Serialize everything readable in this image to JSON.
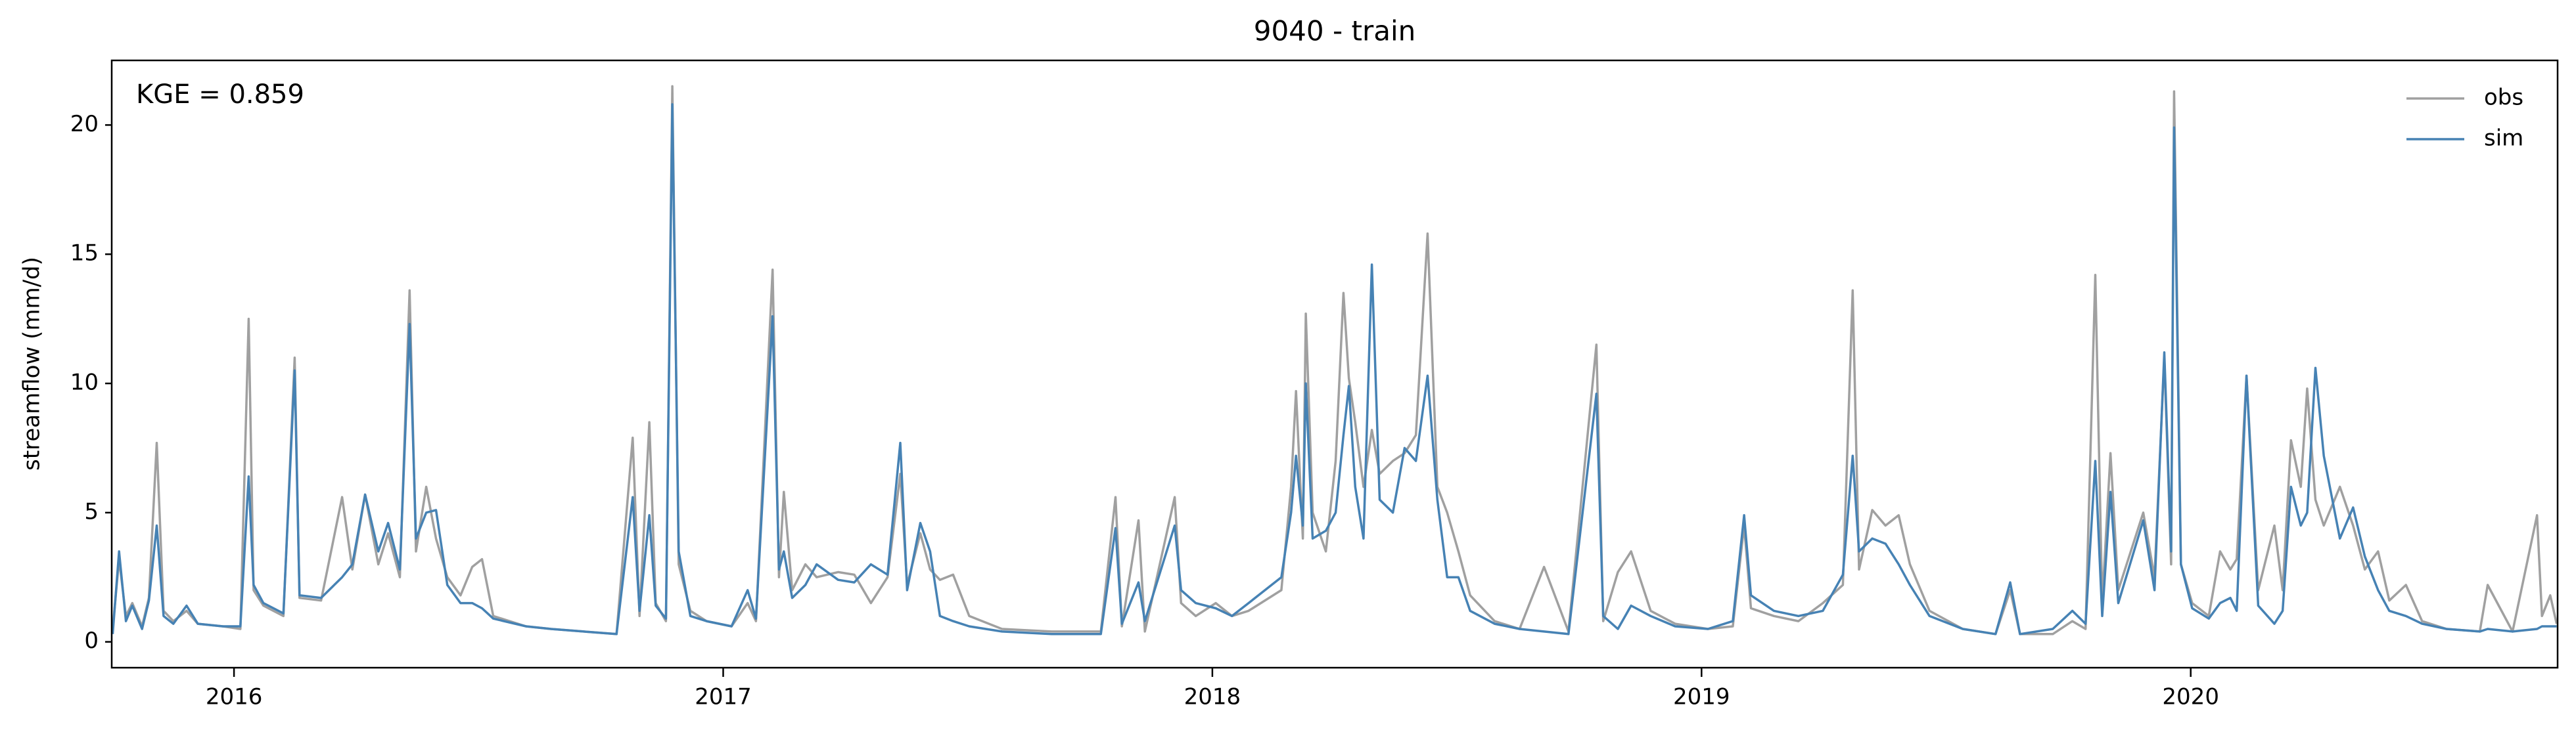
{
  "chart_data": {
    "type": "line",
    "title": "9040 - train",
    "ylabel": "streamflow (mm/d)",
    "annotation": "KGE = 0.859",
    "x": [
      2015.752,
      2015.765,
      2015.779,
      2015.792,
      2015.812,
      2015.826,
      2015.842,
      2015.856,
      2015.876,
      2015.903,
      2015.926,
      2015.977,
      2016.013,
      2016.03,
      2016.04,
      2016.06,
      2016.101,
      2016.124,
      2016.134,
      2016.178,
      2016.221,
      2016.242,
      2016.268,
      2016.295,
      2016.315,
      2016.339,
      2016.359,
      2016.372,
      2016.393,
      2016.413,
      2016.436,
      2016.463,
      2016.487,
      2016.507,
      2016.53,
      2016.597,
      2016.648,
      2016.715,
      2016.782,
      2016.815,
      2016.829,
      2016.849,
      2016.862,
      2016.883,
      2016.896,
      2016.909,
      2016.933,
      2016.966,
      2017.017,
      2017.05,
      2017.067,
      2017.101,
      2017.114,
      2017.124,
      2017.141,
      2017.168,
      2017.191,
      2017.235,
      2017.268,
      2017.302,
      2017.336,
      2017.362,
      2017.376,
      2017.403,
      2017.423,
      2017.443,
      2017.47,
      2017.503,
      2017.57,
      2017.671,
      2017.772,
      2017.802,
      2017.815,
      2017.849,
      2017.862,
      2017.923,
      2017.936,
      2017.966,
      2018.007,
      2018.04,
      2018.074,
      2018.141,
      2018.161,
      2018.171,
      2018.185,
      2018.191,
      2018.205,
      2018.232,
      2018.252,
      2018.268,
      2018.279,
      2018.292,
      2018.309,
      2018.326,
      2018.342,
      2018.369,
      2018.393,
      2018.416,
      2018.44,
      2018.46,
      2018.48,
      2018.503,
      2018.527,
      2018.577,
      2018.628,
      2018.678,
      2018.728,
      2018.785,
      2018.799,
      2018.829,
      2018.856,
      2018.896,
      2018.946,
      2019.013,
      2019.064,
      2019.087,
      2019.101,
      2019.148,
      2019.198,
      2019.248,
      2019.289,
      2019.309,
      2019.322,
      2019.349,
      2019.376,
      2019.403,
      2019.426,
      2019.466,
      2019.534,
      2019.601,
      2019.631,
      2019.651,
      2019.718,
      2019.758,
      2019.785,
      2019.805,
      2019.819,
      2019.836,
      2019.852,
      2019.903,
      2019.926,
      2019.946,
      2019.96,
      2019.966,
      2019.98,
      2020.003,
      2020.037,
      2020.06,
      2020.081,
      2020.094,
      2020.114,
      2020.138,
      2020.171,
      2020.188,
      2020.205,
      2020.225,
      2020.238,
      2020.255,
      2020.272,
      2020.305,
      2020.332,
      2020.356,
      2020.383,
      2020.406,
      2020.44,
      2020.473,
      2020.523,
      2020.591,
      2020.607,
      2020.658,
      2020.708,
      2020.718,
      2020.735,
      2020.748
    ],
    "series": [
      {
        "name": "obs",
        "color": "#a0a0a0",
        "values": [
          0.5,
          3.2,
          1.0,
          1.5,
          0.6,
          1.7,
          7.7,
          1.2,
          0.8,
          1.2,
          0.7,
          0.6,
          0.5,
          12.5,
          2.0,
          1.4,
          1.0,
          11.0,
          1.7,
          1.6,
          5.6,
          2.8,
          5.7,
          3.0,
          4.2,
          2.5,
          13.6,
          3.5,
          6.0,
          4.0,
          2.5,
          1.8,
          2.9,
          3.2,
          1.0,
          0.6,
          0.5,
          0.4,
          0.3,
          7.9,
          1.0,
          8.5,
          1.5,
          0.8,
          21.5,
          3.0,
          1.2,
          0.8,
          0.6,
          1.5,
          0.8,
          14.4,
          2.5,
          5.8,
          2.0,
          3.0,
          2.5,
          2.7,
          2.6,
          1.5,
          2.5,
          6.5,
          2.2,
          4.2,
          2.8,
          2.4,
          2.6,
          1.0,
          0.5,
          0.4,
          0.4,
          5.6,
          0.6,
          4.7,
          0.4,
          5.6,
          1.5,
          1.0,
          1.5,
          1.0,
          1.2,
          2.0,
          6.0,
          9.7,
          4.0,
          12.7,
          5.0,
          3.5,
          7.0,
          13.5,
          10.2,
          8.5,
          6.0,
          8.2,
          6.5,
          7.0,
          7.3,
          8.0,
          15.8,
          6.0,
          5.0,
          3.5,
          1.8,
          0.8,
          0.5,
          2.9,
          0.4,
          11.5,
          0.8,
          2.7,
          3.5,
          1.2,
          0.7,
          0.5,
          0.6,
          4.5,
          1.3,
          1.0,
          0.8,
          1.5,
          2.2,
          13.6,
          2.8,
          5.1,
          4.5,
          4.9,
          3.0,
          1.2,
          0.5,
          0.3,
          2.0,
          0.3,
          0.3,
          0.8,
          0.5,
          14.2,
          1.5,
          7.3,
          2.0,
          5.0,
          2.5,
          11.0,
          3.0,
          21.3,
          3.0,
          1.5,
          1.0,
          3.5,
          2.8,
          3.2,
          10.3,
          2.0,
          4.5,
          2.0,
          7.8,
          6.0,
          9.8,
          5.5,
          4.5,
          6.0,
          4.5,
          2.8,
          3.5,
          1.6,
          2.2,
          0.8,
          0.5,
          0.4,
          2.2,
          0.4,
          4.9,
          1.0,
          1.8,
          0.7
        ]
      },
      {
        "name": "sim",
        "color": "#4682b4",
        "values": [
          0.3,
          3.5,
          0.8,
          1.4,
          0.5,
          1.6,
          4.5,
          1.0,
          0.7,
          1.4,
          0.7,
          0.6,
          0.6,
          6.4,
          2.2,
          1.5,
          1.1,
          10.5,
          1.8,
          1.7,
          2.5,
          3.0,
          5.7,
          3.5,
          4.6,
          2.8,
          12.3,
          4.0,
          5.0,
          5.1,
          2.2,
          1.5,
          1.5,
          1.3,
          0.9,
          0.6,
          0.5,
          0.4,
          0.3,
          5.6,
          1.2,
          4.9,
          1.4,
          0.9,
          20.8,
          3.5,
          1.0,
          0.8,
          0.6,
          2.0,
          0.9,
          12.6,
          2.8,
          3.5,
          1.7,
          2.2,
          3.0,
          2.4,
          2.3,
          3.0,
          2.6,
          7.7,
          2.0,
          4.6,
          3.5,
          1.0,
          0.8,
          0.6,
          0.4,
          0.3,
          0.3,
          4.4,
          0.7,
          2.3,
          0.8,
          4.5,
          2.0,
          1.5,
          1.3,
          1.0,
          1.5,
          2.5,
          5.0,
          7.2,
          4.5,
          10.0,
          4.0,
          4.3,
          5.0,
          8.0,
          9.9,
          6.0,
          4.0,
          14.6,
          5.5,
          5.0,
          7.5,
          7.0,
          10.3,
          5.5,
          2.5,
          2.5,
          1.2,
          0.7,
          0.5,
          0.4,
          0.3,
          9.6,
          1.0,
          0.5,
          1.4,
          1.0,
          0.6,
          0.5,
          0.8,
          4.9,
          1.8,
          1.2,
          1.0,
          1.2,
          2.6,
          7.2,
          3.5,
          4.0,
          3.8,
          3.0,
          2.2,
          1.0,
          0.5,
          0.3,
          2.3,
          0.3,
          0.5,
          1.2,
          0.7,
          7.0,
          1.0,
          5.8,
          1.5,
          4.7,
          2.0,
          11.2,
          3.5,
          19.9,
          3.0,
          1.3,
          0.9,
          1.5,
          1.7,
          1.2,
          10.3,
          1.4,
          0.7,
          1.2,
          6.0,
          4.5,
          5.0,
          10.6,
          7.2,
          4.0,
          5.2,
          3.3,
          2.0,
          1.2,
          1.0,
          0.7,
          0.5,
          0.4,
          0.5,
          0.4,
          0.5,
          0.6,
          0.6,
          0.6
        ]
      }
    ],
    "xlim": [
      2015.75,
      2020.75
    ],
    "xticks": [
      2016,
      2017,
      2018,
      2019,
      2020
    ],
    "ylim": [
      -1.0,
      22.5
    ],
    "yticks": [
      0,
      5,
      10,
      15,
      20
    ],
    "grid": false,
    "legend": "upper right"
  }
}
